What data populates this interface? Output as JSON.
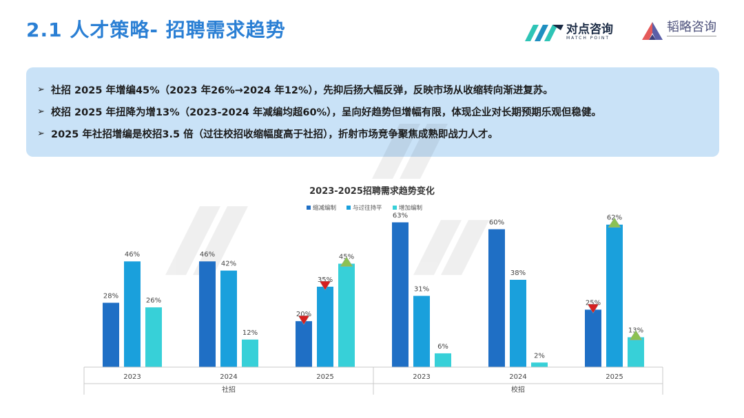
{
  "header": {
    "title": "2.1 人才策略- 招聘需求趋势",
    "logo_primary_cn": "对点咨询",
    "logo_primary_en": "MATCH POINT",
    "logo_secondary_cn": "韬略咨询"
  },
  "summary": {
    "items": [
      "社招 2025 年增编45%（2023 年26%→2024 年12%），先抑后扬大幅反弹，反映市场从收缩转向渐进复苏。",
      "校招 2025 年扭降为增13%（2023-2024 年减编均超60%），呈向好趋势但增幅有限，体现企业对长期预期乐观但稳健。",
      "2025 年社招增编是校招3.5 倍（过往校招收缩幅度高于社招），折射市场竞争聚焦成熟即战力人才。"
    ]
  },
  "chart_data": {
    "type": "bar",
    "title": "2023-2025招聘需求趋势变化",
    "groups": [
      "社招",
      "校招"
    ],
    "categories": [
      "2023",
      "2024",
      "2025",
      "2023",
      "2024",
      "2025"
    ],
    "series": [
      {
        "name": "缩减编制",
        "values": [
          28,
          46,
          20,
          63,
          60,
          25
        ],
        "color": "#1f6fc5"
      },
      {
        "name": "与过往持平",
        "values": [
          46,
          42,
          35,
          31,
          38,
          62
        ],
        "color": "#1aa0dc"
      },
      {
        "name": "增加编制",
        "values": [
          26,
          12,
          45,
          6,
          2,
          13
        ],
        "color": "#37d0d8"
      }
    ],
    "value_suffix": "%",
    "ylim": [
      0,
      70
    ],
    "legend_position": "top",
    "markers": [
      {
        "category_index": 2,
        "series_index": 0,
        "symbol": "down-triangle",
        "color": "#d62020"
      },
      {
        "category_index": 2,
        "series_index": 1,
        "symbol": "down-triangle",
        "color": "#d62020"
      },
      {
        "category_index": 2,
        "series_index": 2,
        "symbol": "up-triangle",
        "color": "#8cc152"
      },
      {
        "category_index": 5,
        "series_index": 0,
        "symbol": "down-triangle",
        "color": "#d62020"
      },
      {
        "category_index": 5,
        "series_index": 1,
        "symbol": "up-triangle",
        "color": "#8cc152"
      },
      {
        "category_index": 5,
        "series_index": 2,
        "symbol": "up-triangle",
        "color": "#8cc152"
      }
    ]
  }
}
